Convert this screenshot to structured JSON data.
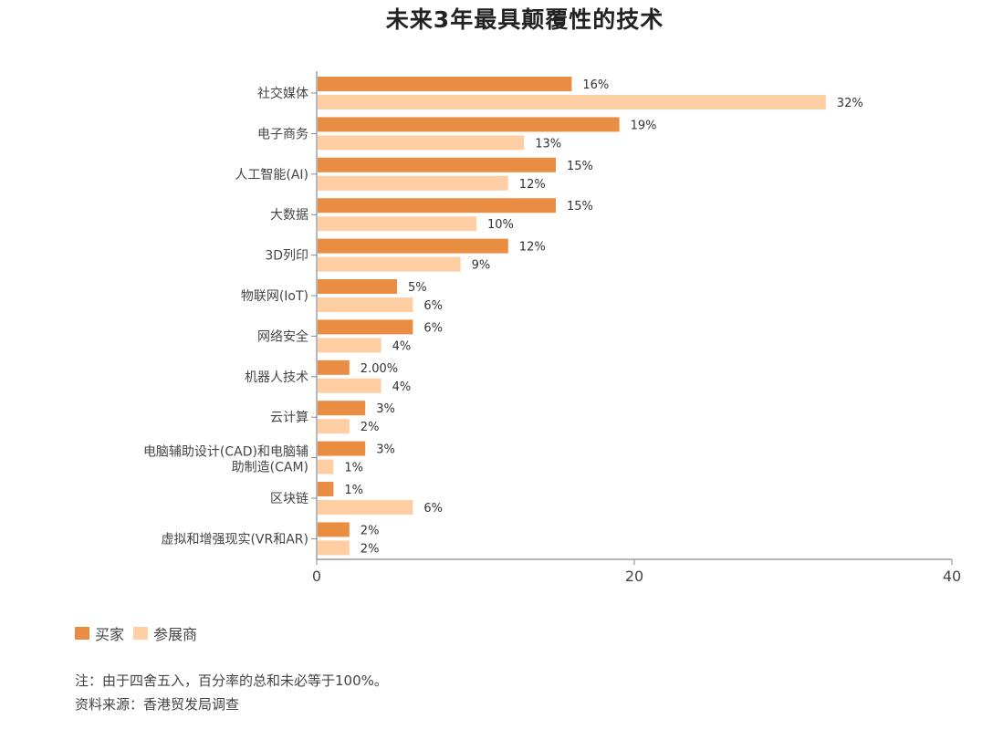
{
  "chart_data": {
    "type": "bar",
    "orientation": "horizontal",
    "title": "未来3年最具颠覆性的技术",
    "categories": [
      "社交媒体",
      "电子商务",
      "人工智能(AI)",
      "大数据",
      "3D列印",
      "物联网(IoT)",
      "网络安全",
      "机器人技术",
      "云计算",
      "电脑辅助设计(CAD)和电脑辅助制造(CAM)",
      "区块链",
      "虚拟和增强现实(VR和AR)"
    ],
    "category_display_lines": [
      [
        "社交媒体"
      ],
      [
        "电子商务"
      ],
      [
        "人工智能(AI)"
      ],
      [
        "大数据"
      ],
      [
        "3D列印"
      ],
      [
        "物联网(IoT)"
      ],
      [
        "网络安全"
      ],
      [
        "机器人技术"
      ],
      [
        "云计算"
      ],
      [
        "电脑辅助设计(CAD)和电脑辅",
        "助制造(CAM)"
      ],
      [
        "区块链"
      ],
      [
        "虚拟和增强现实(VR和AR)"
      ]
    ],
    "series": [
      {
        "name": "买家",
        "color": "#E88D42",
        "values": [
          16,
          19,
          15,
          15,
          12,
          5,
          6,
          2,
          3,
          3,
          1,
          2
        ],
        "labels": [
          "16%",
          "19%",
          "15%",
          "15%",
          "12%",
          "5%",
          "6%",
          "2.00%",
          "3%",
          "3%",
          "1%",
          "2%"
        ]
      },
      {
        "name": "参展商",
        "color": "#FFCFA3",
        "values": [
          32,
          13,
          12,
          10,
          9,
          6,
          4,
          4,
          2,
          1,
          6,
          2
        ],
        "labels": [
          "32%",
          "13%",
          "12%",
          "10%",
          "9%",
          "6%",
          "4%",
          "4%",
          "2%",
          "1%",
          "6%",
          "2%"
        ]
      }
    ],
    "xlabel": "",
    "ylabel": "",
    "xlim": [
      0,
      40
    ],
    "xticks": [
      "0",
      "20",
      "40"
    ],
    "grid": false,
    "legend_position": "bottom-left"
  },
  "legend": [
    {
      "label": "买家",
      "color": "#E88D42"
    },
    {
      "label": "参展商",
      "color": "#FFCFA3"
    }
  ],
  "notes": {
    "note": "注：由于四舍五入，百分率的总和未必等于100%。",
    "source": "资料来源：香港贸发局调查"
  }
}
